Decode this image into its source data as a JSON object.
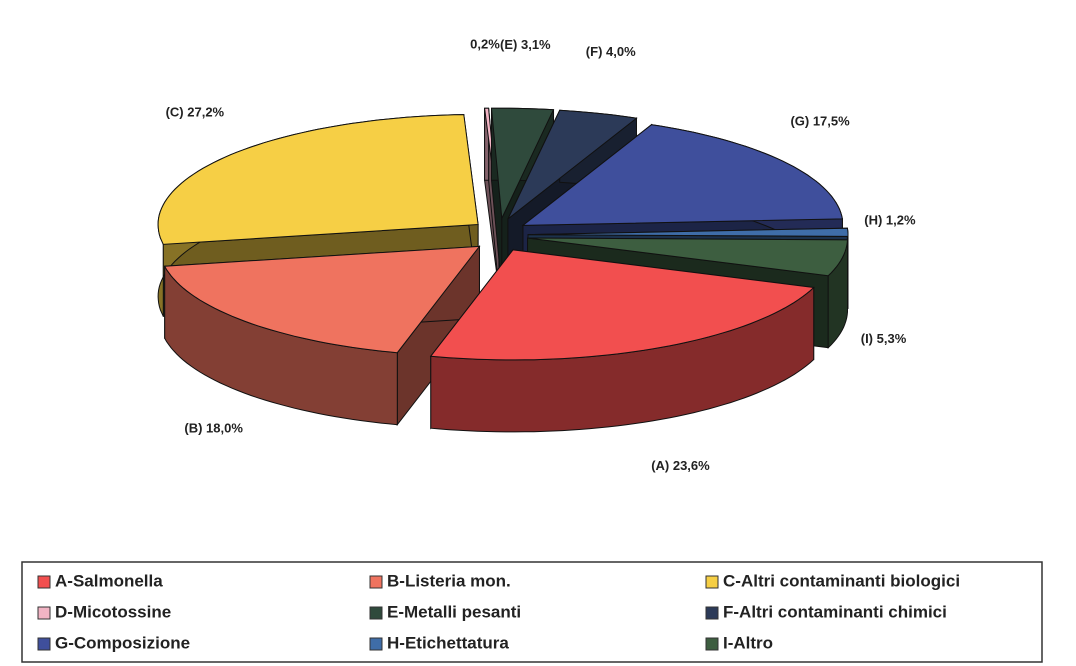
{
  "chart_data": {
    "type": "pie",
    "categories": [
      "A-Salmonella",
      "B-Listeria mon.",
      "C-Altri contaminanti biologici",
      "D-Micotossine",
      "E-Metalli pesanti",
      "F-Altri contaminanti chimici",
      "G-Composizione",
      "H-Etichettatura",
      "I-Altro"
    ],
    "values": [
      23.6,
      18.0,
      27.2,
      0.2,
      3.1,
      4.0,
      17.5,
      1.2,
      5.3
    ],
    "value_labels": [
      "(A) 23,6%",
      "(B) 18,0%",
      "(C) 27,2%",
      "0,2%",
      "(E) 3,1%",
      "(F) 4,0%",
      "(G) 17,5%",
      "(H) 1,2%",
      "(I) 5,3%"
    ],
    "colors": [
      "#f24f4f",
      "#ef735f",
      "#f6cf45",
      "#f2b4c4",
      "#2f4a3c",
      "#2c3a58",
      "#3f4f9c",
      "#3f6da8",
      "#3d5e40"
    ],
    "legend": "bottom"
  }
}
